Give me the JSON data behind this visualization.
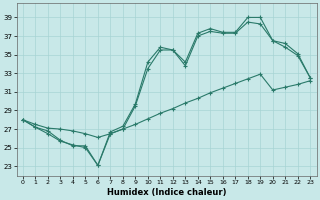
{
  "title": "",
  "xlabel": "Humidex (Indice chaleur)",
  "bg_color": "#c8e8e8",
  "line_color": "#2a7a6a",
  "xlim": [
    -0.5,
    23.5
  ],
  "ylim": [
    22.0,
    40.5
  ],
  "xticks": [
    0,
    1,
    2,
    3,
    4,
    5,
    6,
    7,
    8,
    9,
    10,
    11,
    12,
    13,
    14,
    15,
    16,
    17,
    18,
    19,
    20,
    21,
    22,
    23
  ],
  "yticks": [
    23,
    25,
    27,
    29,
    31,
    33,
    35,
    37,
    39
  ],
  "series1_x": [
    0,
    1,
    2,
    3,
    4,
    5,
    6,
    7,
    8,
    9,
    10,
    11,
    12,
    13,
    14,
    15,
    16,
    17,
    18,
    19,
    20,
    21,
    22,
    23
  ],
  "series1_y": [
    28.0,
    27.2,
    26.8,
    25.8,
    25.2,
    25.2,
    23.1,
    26.7,
    27.3,
    29.7,
    34.2,
    35.8,
    35.5,
    34.2,
    37.3,
    37.8,
    37.4,
    37.4,
    39.0,
    39.0,
    36.5,
    36.2,
    35.1,
    32.5
  ],
  "series2_x": [
    0,
    1,
    2,
    3,
    4,
    5,
    6,
    7,
    8,
    9,
    10,
    11,
    12,
    13,
    14,
    15,
    16,
    17,
    18,
    19,
    20,
    21,
    22,
    23
  ],
  "series2_y": [
    28.0,
    27.2,
    26.5,
    25.7,
    25.3,
    25.0,
    23.1,
    26.5,
    27.0,
    29.5,
    33.5,
    35.5,
    35.5,
    33.8,
    37.0,
    37.5,
    37.3,
    37.3,
    38.5,
    38.3,
    36.5,
    35.8,
    34.9,
    32.5
  ],
  "series3_x": [
    0,
    1,
    2,
    3,
    4,
    5,
    6,
    7,
    8,
    9,
    10,
    11,
    12,
    13,
    14,
    15,
    16,
    17,
    18,
    19,
    20,
    21,
    22,
    23
  ],
  "series3_y": [
    28.0,
    27.5,
    27.1,
    27.0,
    26.8,
    26.5,
    26.1,
    26.5,
    27.0,
    27.5,
    28.1,
    28.7,
    29.2,
    29.8,
    30.3,
    30.9,
    31.4,
    31.9,
    32.4,
    32.9,
    31.2,
    31.5,
    31.8,
    32.2
  ]
}
